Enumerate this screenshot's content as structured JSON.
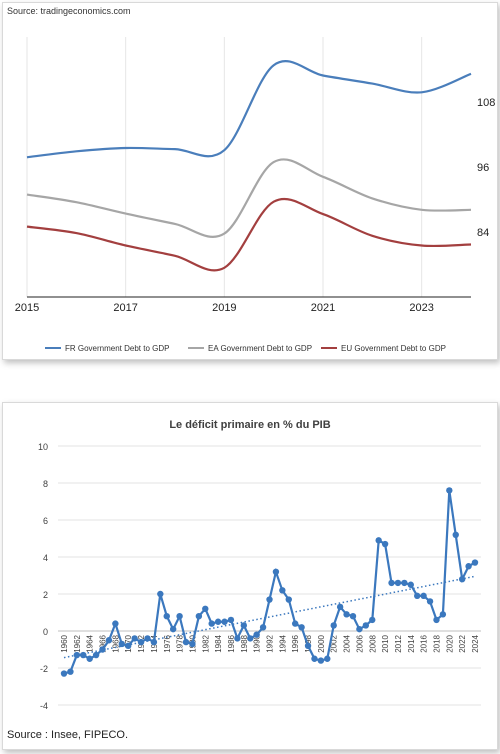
{
  "top": {
    "source": "Source: tradingeconomics.com",
    "chart_data": {
      "type": "line",
      "x_ticks": [
        "2015",
        "2017",
        "2019",
        "2021",
        "2023"
      ],
      "y_ticks": [
        "84",
        "96",
        "108"
      ],
      "ylim": [
        72,
        120
      ],
      "xlim": [
        2015,
        2024
      ],
      "grid": "vertical",
      "legend": "bottom",
      "series": [
        {
          "name": "FR Government Debt to GDP",
          "color": "#4a7ebb",
          "x": [
            2015,
            2016,
            2017,
            2018,
            2019,
            2020,
            2021,
            2022,
            2023,
            2024
          ],
          "y": [
            97.8,
            98.9,
            99.5,
            99.3,
            99.1,
            114.8,
            112.9,
            111.4,
            109.8,
            113.2
          ]
        },
        {
          "name": "EA Government Debt to GDP",
          "color": "#a6a6a6",
          "x": [
            2015,
            2016,
            2017,
            2018,
            2019,
            2020,
            2021,
            2022,
            2023,
            2024
          ],
          "y": [
            90.9,
            89.5,
            87.4,
            85.5,
            83.7,
            96.9,
            94.2,
            90.2,
            88.1,
            88.1
          ]
        },
        {
          "name": "EU Government Debt to GDP",
          "color": "#a33f3f",
          "x": [
            2015,
            2016,
            2017,
            2018,
            2019,
            2020,
            2021,
            2022,
            2023,
            2024
          ],
          "y": [
            85.0,
            83.8,
            81.5,
            79.6,
            77.4,
            89.6,
            87.3,
            83.3,
            81.5,
            81.7
          ]
        }
      ]
    }
  },
  "bottom": {
    "source": "Source : Insee, FIPECO.",
    "chart_data": {
      "type": "line",
      "title": "Le déficit primaire en % du PIB",
      "ylim": [
        -4,
        10
      ],
      "y_ticks": [
        "-4",
        "-2",
        "0",
        "2",
        "4",
        "6",
        "8",
        "10"
      ],
      "grid": "horizontal",
      "trendline": "dotted linear",
      "color": "#3b78be",
      "x_ticks": [
        "1960",
        "1962",
        "1964",
        "1966",
        "1968",
        "1970",
        "1972",
        "1974",
        "1976",
        "1978",
        "1980",
        "1982",
        "1984",
        "1986",
        "1988",
        "1990",
        "1992",
        "1994",
        "1996",
        "1998",
        "2000",
        "2002",
        "2004",
        "2006",
        "2008",
        "2010",
        "2012",
        "2014",
        "2016",
        "2018",
        "2020",
        "2022",
        "2024"
      ],
      "x": [
        1960,
        1961,
        1962,
        1963,
        1964,
        1965,
        1966,
        1967,
        1968,
        1969,
        1970,
        1971,
        1972,
        1973,
        1974,
        1975,
        1976,
        1977,
        1978,
        1979,
        1980,
        1981,
        1982,
        1983,
        1984,
        1985,
        1986,
        1987,
        1988,
        1989,
        1990,
        1991,
        1992,
        1993,
        1994,
        1995,
        1996,
        1997,
        1998,
        1999,
        2000,
        2001,
        2002,
        2003,
        2004,
        2005,
        2006,
        2007,
        2008,
        2009,
        2010,
        2011,
        2012,
        2013,
        2014,
        2015,
        2016,
        2017,
        2018,
        2019,
        2020,
        2021,
        2022,
        2023,
        2024
      ],
      "values": [
        -2.3,
        -2.2,
        -1.3,
        -1.3,
        -1.5,
        -1.3,
        -1.0,
        -0.5,
        0.4,
        -0.7,
        -0.8,
        -0.4,
        -0.6,
        -0.4,
        -0.6,
        2.0,
        0.8,
        0.1,
        0.8,
        -0.6,
        -0.7,
        0.8,
        1.2,
        0.4,
        0.5,
        0.5,
        0.6,
        -0.4,
        0.3,
        -0.4,
        -0.2,
        0.2,
        1.7,
        3.2,
        2.2,
        1.7,
        0.4,
        0.2,
        -0.8,
        -1.5,
        -1.6,
        -1.5,
        0.3,
        1.3,
        0.9,
        0.8,
        0.1,
        0.3,
        0.6,
        4.9,
        4.7,
        2.6,
        2.6,
        2.6,
        2.5,
        1.9,
        1.9,
        1.6,
        0.6,
        0.9,
        7.6,
        5.2,
        2.8,
        3.5,
        3.7
      ]
    }
  }
}
